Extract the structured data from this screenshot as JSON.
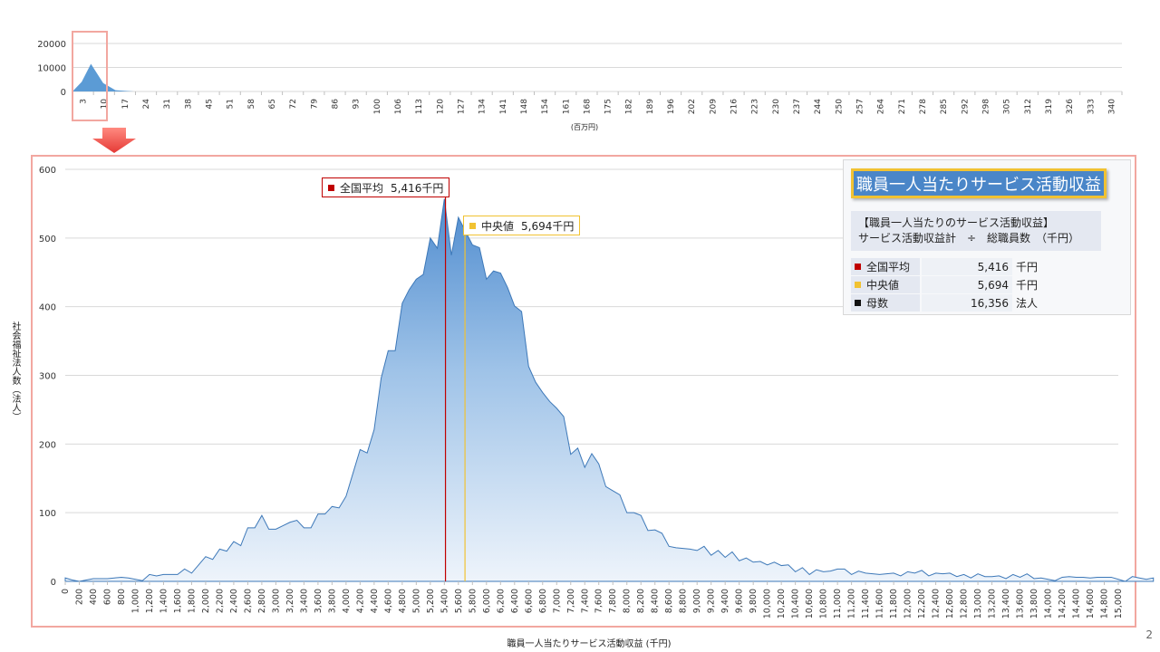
{
  "chart_data": [
    {
      "type": "area",
      "name_role": "overview",
      "x_ticks": [
        "3",
        "10",
        "17",
        "24",
        "31",
        "38",
        "45",
        "51",
        "58",
        "65",
        "72",
        "79",
        "86",
        "93",
        "100",
        "106",
        "113",
        "120",
        "127",
        "134",
        "141",
        "148",
        "154",
        "161",
        "168",
        "175",
        "182",
        "189",
        "196",
        "202",
        "209",
        "216",
        "223",
        "230",
        "237",
        "244",
        "250",
        "257",
        "264",
        "271",
        "278",
        "285",
        "292",
        "298",
        "305",
        "312",
        "319",
        "326",
        "333",
        "340"
      ],
      "x": [
        0,
        3,
        6,
        10,
        14,
        20,
        340
      ],
      "y": [
        0,
        4000,
        11500,
        3500,
        500,
        0,
        0
      ],
      "xlim": [
        0,
        342
      ],
      "ylim": [
        0,
        20000
      ],
      "y_ticks": [
        0,
        10000,
        20000
      ],
      "xlabel": "(百万円)",
      "grid": true,
      "color": "#5b9bd5"
    },
    {
      "type": "area",
      "name_role": "detail",
      "xlabel": "職員一人当たりサービス活動収益 (千円)",
      "ylabel": "社会福祉法人数（法人）",
      "xlim": [
        0,
        15000
      ],
      "ylim": [
        0,
        600
      ],
      "y_ticks": [
        0,
        100,
        200,
        300,
        400,
        500,
        600
      ],
      "x_ticks": [
        0,
        200,
        400,
        600,
        800,
        1000,
        1200,
        1400,
        1600,
        1800,
        2000,
        2200,
        2400,
        2600,
        2800,
        3000,
        3200,
        3400,
        3600,
        3800,
        4000,
        4200,
        4400,
        4600,
        4800,
        5000,
        5200,
        5400,
        5600,
        5800,
        6000,
        6200,
        6400,
        6600,
        6800,
        7000,
        7200,
        7400,
        7600,
        7800,
        8000,
        8200,
        8400,
        8600,
        8800,
        9000,
        9200,
        9400,
        9600,
        9800,
        10000,
        10200,
        10400,
        10600,
        10800,
        11000,
        11200,
        11400,
        11600,
        11800,
        12000,
        12200,
        12400,
        12600,
        12800,
        13000,
        13200,
        13400,
        13600,
        13800,
        14000,
        14200,
        14400,
        14600,
        14800,
        15000
      ],
      "x_tick_labels": [
        "0",
        "200",
        "400",
        "600",
        "800",
        "1,000",
        "1,200",
        "1,400",
        "1,600",
        "1,800",
        "2,000",
        "2,200",
        "2,400",
        "2,600",
        "2,800",
        "3,000",
        "3,200",
        "3,400",
        "3,600",
        "3,800",
        "4,000",
        "4,200",
        "4,400",
        "4,600",
        "4,800",
        "5,000",
        "5,200",
        "5,400",
        "5,600",
        "5,800",
        "6,000",
        "6,200",
        "6,400",
        "6,600",
        "6,800",
        "7,000",
        "7,200",
        "7,400",
        "7,600",
        "7,800",
        "8,000",
        "8,200",
        "8,400",
        "8,600",
        "8,800",
        "9,000",
        "9,200",
        "9,400",
        "9,600",
        "9,800",
        "10,000",
        "10,200",
        "10,400",
        "10,600",
        "10,800",
        "11,000",
        "11,200",
        "11,400",
        "11,600",
        "11,800",
        "12,000",
        "12,200",
        "12,400",
        "12,600",
        "12,800",
        "13,000",
        "13,200",
        "13,400",
        "13,600",
        "13,800",
        "14,000",
        "14,200",
        "14,400",
        "14,600",
        "14,800",
        "15,000"
      ],
      "x_step": 100,
      "values": [
        5,
        2,
        0,
        2,
        4,
        4,
        4,
        5,
        6,
        5,
        3,
        1,
        10,
        8,
        10,
        10,
        10,
        18,
        12,
        24,
        36,
        32,
        47,
        44,
        58,
        52,
        78,
        78,
        96,
        76,
        76,
        81,
        86,
        89,
        78,
        78,
        98,
        98,
        109,
        107,
        124,
        158,
        192,
        187,
        221,
        296,
        336,
        336,
        405,
        425,
        440,
        447,
        500,
        485,
        557,
        475,
        530,
        510,
        490,
        486,
        440,
        452,
        449,
        428,
        401,
        393,
        313,
        290,
        275,
        262,
        252,
        240,
        185,
        194,
        166,
        186,
        171,
        138,
        132,
        126,
        100,
        100,
        96,
        74,
        75,
        70,
        51,
        49,
        48,
        47,
        45,
        51,
        38,
        45,
        35,
        43,
        30,
        34,
        28,
        29,
        24,
        28,
        23,
        24,
        14,
        20,
        10,
        17,
        14,
        15,
        18,
        18,
        10,
        15,
        12,
        11,
        10,
        11,
        12,
        8,
        14,
        12,
        16,
        8,
        12,
        11,
        12,
        7,
        10,
        5,
        11,
        7,
        7,
        8,
        4,
        10,
        6,
        11,
        4,
        5,
        3,
        1,
        6,
        7,
        6,
        6,
        5,
        6,
        6,
        6,
        3,
        0,
        7,
        5,
        3,
        5
      ],
      "grid": true,
      "color": "#5b9bd5"
    }
  ],
  "overlay": {
    "mean_value": 5416,
    "median_value": 5694,
    "mean_color": "#c00000",
    "median_color": "#f1c232",
    "mean_callout_label": "全国平均",
    "mean_callout_value": "5,416千円",
    "median_callout_label": "中央値",
    "median_callout_value": "5,694千円"
  },
  "info_panel": {
    "title": "職員一人当たりサービス活動収益",
    "formula_line1": "【職員一人当たりのサービス活動収益】",
    "formula_line2": "サービス活動収益計　÷　総職員数　（千円）",
    "stats": [
      {
        "label": "全国平均",
        "value": "5,416",
        "unit": "千円",
        "color": "#c00000"
      },
      {
        "label": "中央値",
        "value": "5,694",
        "unit": "千円",
        "color": "#f1c232"
      },
      {
        "label": "母数",
        "value": "16,356",
        "unit": "法人",
        "color": "#111111"
      }
    ]
  },
  "page_number": "2"
}
